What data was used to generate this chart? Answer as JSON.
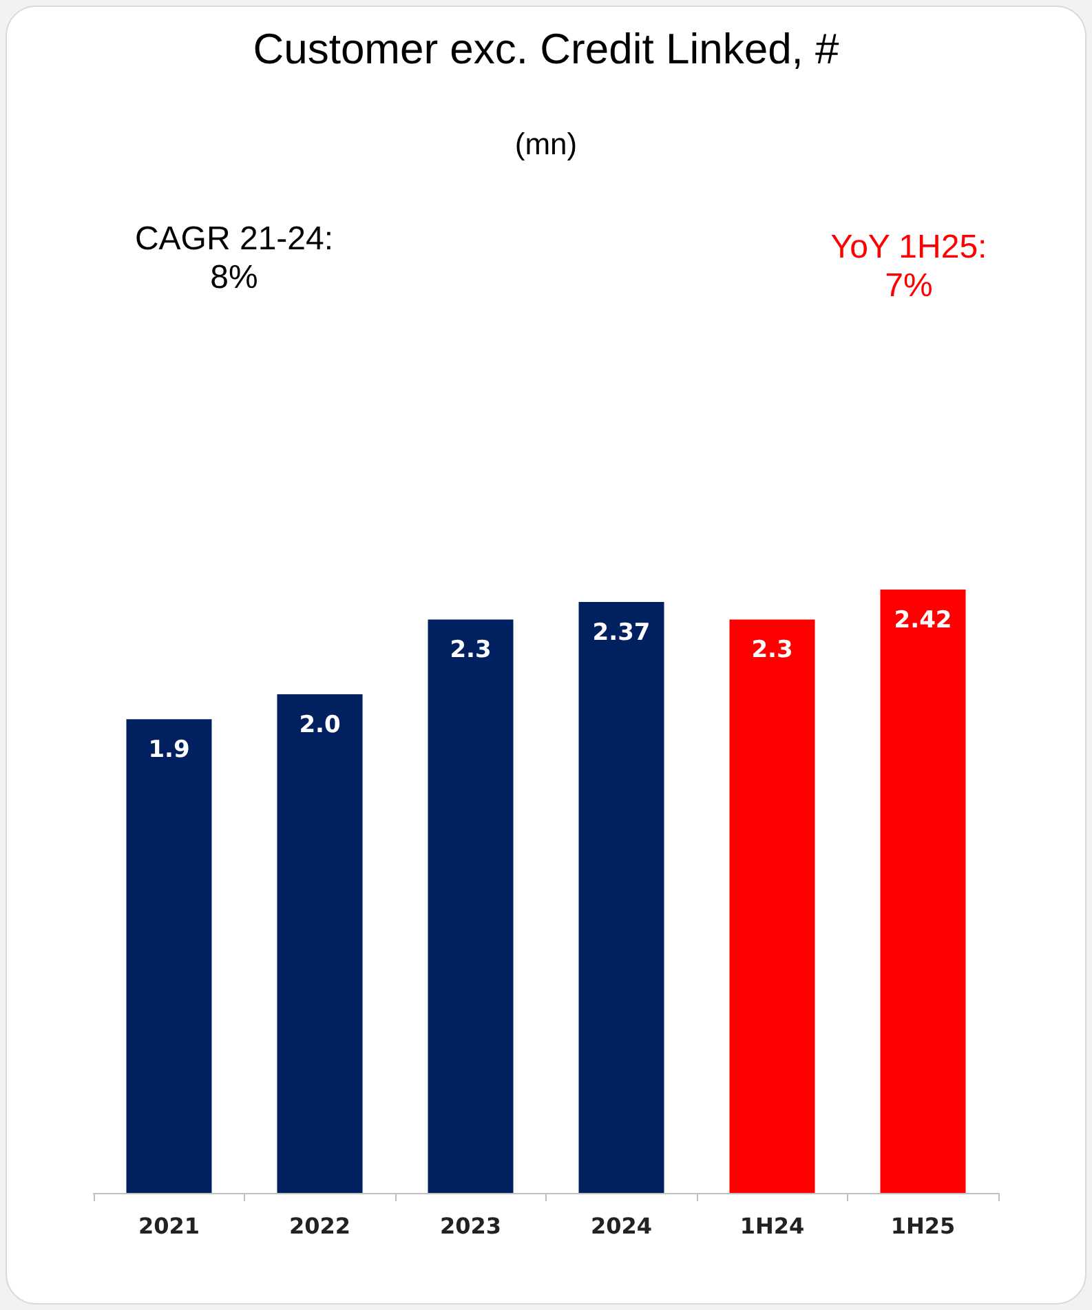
{
  "chart_data": {
    "type": "bar",
    "title": "Customer exc. Credit Linked, #",
    "subtitle": "(mn)",
    "annotations": [
      "CAGR 21-24:\n8%",
      "YoY 1H25:\n7%"
    ],
    "categories": [
      "2021",
      "2022",
      "2023",
      "2024",
      "1H24",
      "1H25"
    ],
    "values": [
      1.9,
      2.0,
      2.3,
      2.37,
      2.3,
      2.42
    ],
    "colors": [
      "#002060",
      "#002060",
      "#002060",
      "#002060",
      "#ff0000",
      "#ff0000"
    ],
    "value_labels": [
      "1.9",
      "2.0",
      "2.3",
      "2.37",
      "2.3",
      "2.42"
    ]
  }
}
